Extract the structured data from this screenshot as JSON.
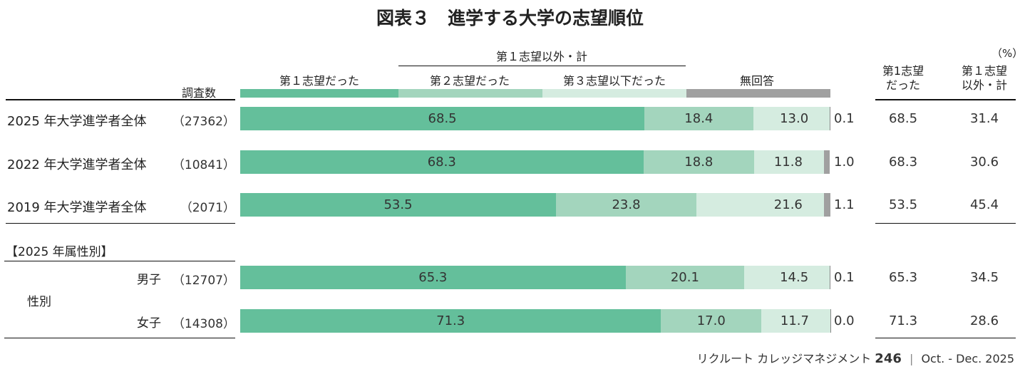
{
  "title": "図表３　進学する大学の志望順位",
  "unit": "（%）",
  "footer": {
    "publication": "リクルート カレッジマネジメント",
    "issue": "246",
    "separator": "|",
    "date": "Oct. - Dec. 2025"
  },
  "chart_data": {
    "type": "bar",
    "stacked": true,
    "orientation": "horizontal",
    "title": "図表３　進学する大学の志望順位",
    "sample_header": "調査数",
    "group_header": "第１志望以外・計",
    "legend": [
      "第１志望だった",
      "第２志望だった",
      "第３志望以下だった",
      "無回答"
    ],
    "colors": [
      "#64bf9b",
      "#a3d5bd",
      "#d5ece0",
      "#a0a0a0"
    ],
    "extra_headers": [
      {
        "l1": "第1志望",
        "l2": "だった"
      },
      {
        "l1": "第１志望",
        "l2": "以外・計"
      }
    ],
    "section_label": "【2025 年属性別】",
    "group_label": "性別",
    "rows": [
      {
        "label": "2025 年大学進学者全体",
        "n": "（27362）",
        "values": [
          68.5,
          18.4,
          13.0,
          0.1
        ],
        "first": "68.5",
        "other": "31.4"
      },
      {
        "label": "2022 年大学進学者全体",
        "n": "（10841）",
        "values": [
          68.3,
          18.8,
          11.8,
          1.0
        ],
        "first": "68.3",
        "other": "30.6"
      },
      {
        "label": "2019 年大学進学者全体",
        "n": "（2071）",
        "values": [
          53.5,
          23.8,
          21.6,
          1.1
        ],
        "first": "53.5",
        "other": "45.4"
      },
      {
        "label": "男子",
        "n": "（12707）",
        "values": [
          65.3,
          20.1,
          14.5,
          0.1
        ],
        "first": "65.3",
        "other": "34.5"
      },
      {
        "label": "女子",
        "n": "（14308）",
        "values": [
          71.3,
          17.0,
          11.7,
          0.0
        ],
        "first": "71.3",
        "other": "28.6"
      }
    ]
  }
}
